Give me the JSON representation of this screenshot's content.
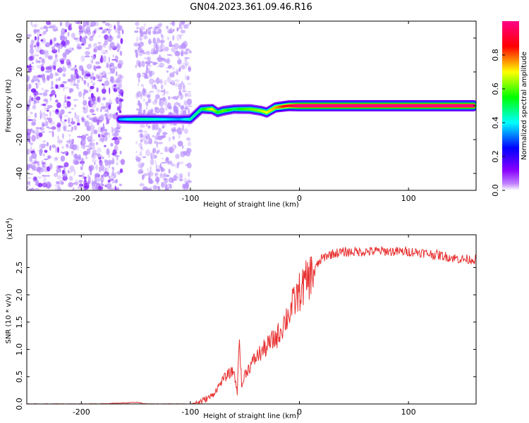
{
  "title": "GN04.2023.361.09.46.R16",
  "chart_data": [
    {
      "type": "heatmap",
      "xlabel": "Height of straight line (km)",
      "ylabel": "Frequency (Hz)",
      "xlim": [
        -250,
        162
      ],
      "ylim": [
        -50,
        50
      ],
      "xticks": [
        -200,
        -100,
        0,
        100
      ],
      "yticks": [
        -40,
        -20,
        0,
        20,
        40
      ],
      "xtick_labels": [
        "-200",
        "-100",
        "0",
        "100"
      ],
      "ytick_labels": [
        "-40",
        "-20",
        "0",
        "20",
        "40"
      ],
      "colorbar": {
        "label": "Normalized spectral amplitude",
        "range": [
          0,
          1
        ],
        "ticks": [
          0.0,
          0.2,
          0.4,
          0.6,
          0.8
        ],
        "tick_labels": [
          "0.0",
          "0.2",
          "0.4",
          "0.6",
          "0.8"
        ],
        "colors": [
          "#ffffff",
          "#8800ff",
          "#0000ff",
          "#00ffff",
          "#00ff00",
          "#ffff00",
          "#ff0000",
          "#ff0088"
        ]
      },
      "noise_regions": [
        {
          "x_range": [
            -250,
            -162
          ],
          "level": 0.12
        },
        {
          "x_range": [
            -150,
            -100
          ],
          "level": 0.08
        }
      ],
      "ridge": [
        {
          "x": -165,
          "y": -8,
          "amp": 0.35
        },
        {
          "x": -150,
          "y": -8,
          "amp": 0.45
        },
        {
          "x": -140,
          "y": -8,
          "amp": 0.45
        },
        {
          "x": -125,
          "y": -8,
          "amp": 0.4
        },
        {
          "x": -110,
          "y": -8,
          "amp": 0.35
        },
        {
          "x": -100,
          "y": -8,
          "amp": 0.45
        },
        {
          "x": -90,
          "y": -2,
          "amp": 0.5
        },
        {
          "x": -80,
          "y": -2,
          "amp": 0.7
        },
        {
          "x": -75,
          "y": -4,
          "amp": 0.55
        },
        {
          "x": -70,
          "y": -3,
          "amp": 0.6
        },
        {
          "x": -60,
          "y": -2,
          "amp": 0.5
        },
        {
          "x": -55,
          "y": -2,
          "amp": 0.55
        },
        {
          "x": -45,
          "y": -2,
          "amp": 0.6
        },
        {
          "x": -35,
          "y": -3,
          "amp": 0.65
        },
        {
          "x": -30,
          "y": -4,
          "amp": 0.7
        },
        {
          "x": -22,
          "y": -1,
          "amp": 0.75
        },
        {
          "x": -10,
          "y": 0,
          "amp": 0.9
        },
        {
          "x": 0,
          "y": 0,
          "amp": 1.0
        },
        {
          "x": 20,
          "y": 0,
          "amp": 1.0
        },
        {
          "x": 60,
          "y": 0,
          "amp": 1.0
        },
        {
          "x": 100,
          "y": 0,
          "amp": 1.0
        },
        {
          "x": 140,
          "y": 0,
          "amp": 1.0
        },
        {
          "x": 160,
          "y": 0,
          "amp": 1.0
        }
      ]
    },
    {
      "type": "line",
      "xlabel": "Height of straight line (km)",
      "ylabel": "SNR (10 * v/v)",
      "y_multiplier": "(x10",
      "y_multiplier_exp": "4",
      "y_multiplier_close": ")",
      "xlim": [
        -250,
        162
      ],
      "ylim": [
        0,
        31000
      ],
      "xticks": [
        -200,
        -100,
        0,
        100
      ],
      "yticks": [
        0,
        5000,
        10000,
        15000,
        20000,
        25000
      ],
      "xtick_labels": [
        "-200",
        "-100",
        "0",
        "100"
      ],
      "ytick_labels": [
        "0.0",
        "0.5",
        "1.0",
        "1.5",
        "2.0",
        "2.5"
      ],
      "color": "#e83030",
      "series": [
        {
          "x": [
            -250,
            -230,
            -210,
            -190,
            -170,
            -150,
            -140,
            -130,
            -110,
            -100,
            -95,
            -90,
            -85,
            -80,
            -75,
            -70,
            -65,
            -60,
            -57,
            -55,
            -53,
            -50,
            -45,
            -40,
            -35,
            -30,
            -25,
            -20,
            -15,
            -10,
            -5,
            0,
            5,
            10,
            15,
            20,
            25,
            30,
            35,
            40,
            50,
            60,
            70,
            80,
            90,
            100,
            110,
            120,
            130,
            140,
            150,
            162
          ],
          "y": [
            0,
            0,
            0,
            0,
            100,
            300,
            0,
            0,
            0,
            0,
            200,
            500,
            1000,
            1500,
            3000,
            4500,
            5500,
            6000,
            2000,
            13000,
            3000,
            5500,
            7000,
            8500,
            9500,
            10500,
            11500,
            12500,
            14500,
            16500,
            18500,
            20500,
            22000,
            23500,
            25000,
            26500,
            27200,
            27500,
            27700,
            27800,
            27900,
            27900,
            28000,
            28000,
            27900,
            27900,
            27800,
            27500,
            27200,
            26800,
            26500,
            26500
          ]
        }
      ]
    }
  ]
}
